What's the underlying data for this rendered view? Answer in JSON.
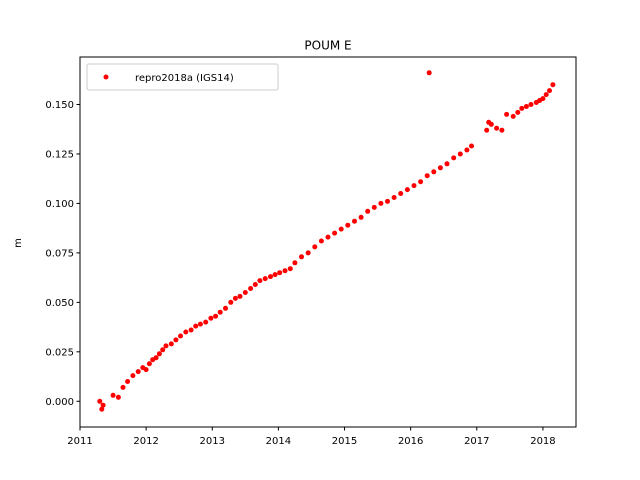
{
  "chart_data": {
    "type": "scatter",
    "title": "POUM E",
    "xlabel": "",
    "ylabel": "m",
    "xlim": [
      2011.0,
      2018.5
    ],
    "ylim": [
      -0.013,
      0.174
    ],
    "x_ticks": [
      2011,
      2012,
      2013,
      2014,
      2015,
      2016,
      2017,
      2018
    ],
    "x_tick_labels": [
      "2011",
      "2012",
      "2013",
      "2014",
      "2015",
      "2016",
      "2017",
      "2018"
    ],
    "y_ticks": [
      0.0,
      0.025,
      0.05,
      0.075,
      0.1,
      0.125,
      0.15
    ],
    "y_tick_labels": [
      "0.000",
      "0.025",
      "0.050",
      "0.075",
      "0.100",
      "0.125",
      "0.150"
    ],
    "grid": false,
    "legend_position": "top-left",
    "series": [
      {
        "name": "repro2018a (IGS14)",
        "color": "#ff0000",
        "marker": "circle",
        "x": [
          2011.3,
          2011.33,
          2011.35,
          2011.5,
          2011.58,
          2011.65,
          2011.72,
          2011.8,
          2011.88,
          2011.95,
          2012.0,
          2012.05,
          2012.1,
          2012.15,
          2012.2,
          2012.25,
          2012.3,
          2012.38,
          2012.45,
          2012.52,
          2012.6,
          2012.68,
          2012.75,
          2012.82,
          2012.9,
          2012.98,
          2013.05,
          2013.12,
          2013.2,
          2013.28,
          2013.35,
          2013.42,
          2013.5,
          2013.58,
          2013.65,
          2013.72,
          2013.8,
          2013.88,
          2013.95,
          2014.02,
          2014.1,
          2014.18,
          2014.25,
          2014.35,
          2014.45,
          2014.55,
          2014.65,
          2014.75,
          2014.85,
          2014.95,
          2015.05,
          2015.15,
          2015.25,
          2015.35,
          2015.45,
          2015.55,
          2015.65,
          2015.75,
          2015.85,
          2015.95,
          2016.05,
          2016.15,
          2016.25,
          2016.28,
          2016.35,
          2016.45,
          2016.55,
          2016.65,
          2016.75,
          2016.85,
          2016.92,
          2017.15,
          2017.18,
          2017.22,
          2017.3,
          2017.38,
          2017.45,
          2017.55,
          2017.62,
          2017.68,
          2017.75,
          2017.82,
          2017.9,
          2017.95,
          2018.0,
          2018.05,
          2018.1,
          2018.15
        ],
        "y": [
          0.0,
          -0.004,
          -0.002,
          0.003,
          0.002,
          0.007,
          0.01,
          0.013,
          0.015,
          0.017,
          0.016,
          0.019,
          0.021,
          0.022,
          0.024,
          0.026,
          0.028,
          0.029,
          0.031,
          0.033,
          0.035,
          0.036,
          0.038,
          0.039,
          0.04,
          0.042,
          0.043,
          0.045,
          0.047,
          0.05,
          0.052,
          0.053,
          0.055,
          0.057,
          0.059,
          0.061,
          0.062,
          0.063,
          0.064,
          0.065,
          0.066,
          0.067,
          0.07,
          0.073,
          0.075,
          0.078,
          0.081,
          0.083,
          0.085,
          0.087,
          0.089,
          0.091,
          0.093,
          0.096,
          0.098,
          0.1,
          0.101,
          0.103,
          0.105,
          0.107,
          0.109,
          0.111,
          0.114,
          0.166,
          0.116,
          0.118,
          0.12,
          0.123,
          0.125,
          0.127,
          0.129,
          0.137,
          0.141,
          0.14,
          0.138,
          0.137,
          0.145,
          0.144,
          0.146,
          0.148,
          0.149,
          0.15,
          0.151,
          0.152,
          0.153,
          0.155,
          0.157,
          0.16
        ]
      }
    ]
  }
}
